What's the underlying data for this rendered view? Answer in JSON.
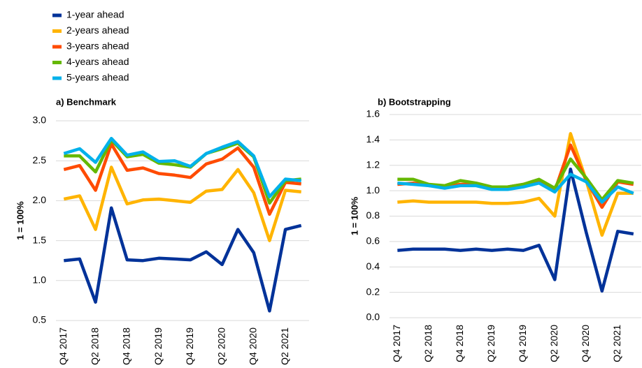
{
  "chart_data": [
    {
      "type": "line",
      "title": "a) Benchmark",
      "y_label": "1 = 100%",
      "categories": [
        "Q4 2017",
        null,
        "Q2 2018",
        null,
        "Q4 2018",
        null,
        "Q2 2019",
        null,
        "Q4 2019",
        null,
        "Q2 2020",
        null,
        "Q4 2020",
        null,
        "Q2 2021",
        null
      ],
      "ylim": [
        0.5,
        3.0
      ],
      "yticks": [
        0.5,
        {
          "value": 1.0,
          "label": "1.0"
        },
        1.5,
        {
          "value": 2.0,
          "label": "2.0"
        },
        2.5,
        {
          "value": 3.0,
          "label": "3.0"
        }
      ],
      "grid": true,
      "legend": "top-left",
      "series": [
        {
          "name": "1-year ahead",
          "color": "#003299",
          "values": [
            1.25,
            1.27,
            0.73,
            1.91,
            1.26,
            1.25,
            1.28,
            1.27,
            1.26,
            1.36,
            1.2,
            1.64,
            1.35,
            0.62,
            1.64,
            1.69
          ]
        },
        {
          "name": "2-years ahead",
          "color": "#ffb400",
          "values": [
            2.02,
            2.06,
            1.64,
            2.42,
            1.96,
            2.01,
            2.02,
            2.0,
            1.98,
            2.12,
            2.14,
            2.39,
            2.1,
            1.5,
            2.13,
            2.11
          ]
        },
        {
          "name": "3-years ahead",
          "color": "#ff4b00",
          "values": [
            2.39,
            2.44,
            2.13,
            2.71,
            2.38,
            2.41,
            2.34,
            2.32,
            2.29,
            2.46,
            2.52,
            2.66,
            2.42,
            1.83,
            2.23,
            2.21
          ]
        },
        {
          "name": "4-years ahead",
          "color": "#65b800",
          "values": [
            2.56,
            2.56,
            2.36,
            2.76,
            2.55,
            2.58,
            2.47,
            2.45,
            2.42,
            2.59,
            2.65,
            2.72,
            2.55,
            1.97,
            2.25,
            2.27
          ]
        },
        {
          "name": "5-years ahead",
          "color": "#00b1ea",
          "values": [
            2.59,
            2.65,
            2.48,
            2.78,
            2.57,
            2.61,
            2.49,
            2.5,
            2.43,
            2.59,
            2.67,
            2.74,
            2.56,
            2.05,
            2.27,
            2.25
          ]
        }
      ]
    },
    {
      "type": "line",
      "title": "b) Bootstrapping",
      "y_label": "1 = 100%",
      "categories": [
        "Q4 2017",
        null,
        "Q2 2018",
        null,
        "Q4 2018",
        null,
        "Q2 2019",
        null,
        "Q4 2019",
        null,
        "Q2 2020",
        null,
        "Q4 2020",
        null,
        "Q2 2021",
        null
      ],
      "ylim": [
        0.0,
        1.6
      ],
      "yticks": [
        {
          "value": 0.0,
          "label": "0.0"
        },
        0.2,
        0.4,
        0.6,
        0.8,
        {
          "value": 1.0,
          "label": "1.0"
        },
        1.2,
        1.4,
        1.6
      ],
      "grid": true,
      "series": [
        {
          "color": "#003299",
          "values": [
            0.53,
            0.54,
            0.54,
            0.54,
            0.53,
            0.54,
            0.53,
            0.54,
            0.53,
            0.57,
            0.3,
            1.17,
            0.67,
            0.21,
            0.68,
            0.66
          ]
        },
        {
          "color": "#ffb400",
          "values": [
            0.91,
            0.92,
            0.91,
            0.91,
            0.91,
            0.91,
            0.9,
            0.9,
            0.91,
            0.94,
            0.8,
            1.45,
            1.08,
            0.65,
            0.98,
            0.98
          ]
        },
        {
          "color": "#ff4b00",
          "values": [
            1.05,
            1.06,
            1.04,
            1.03,
            1.05,
            1.05,
            1.02,
            1.03,
            1.05,
            1.08,
            1.0,
            1.36,
            1.08,
            0.87,
            1.07,
            1.05
          ]
        },
        {
          "color": "#65b800",
          "values": [
            1.09,
            1.09,
            1.05,
            1.04,
            1.08,
            1.06,
            1.03,
            1.03,
            1.05,
            1.09,
            1.02,
            1.25,
            1.1,
            0.93,
            1.08,
            1.06
          ]
        },
        {
          "color": "#00b1ea",
          "values": [
            1.06,
            1.05,
            1.04,
            1.02,
            1.04,
            1.04,
            1.01,
            1.01,
            1.03,
            1.06,
            0.99,
            1.13,
            1.07,
            0.91,
            1.03,
            0.98
          ]
        }
      ]
    }
  ]
}
